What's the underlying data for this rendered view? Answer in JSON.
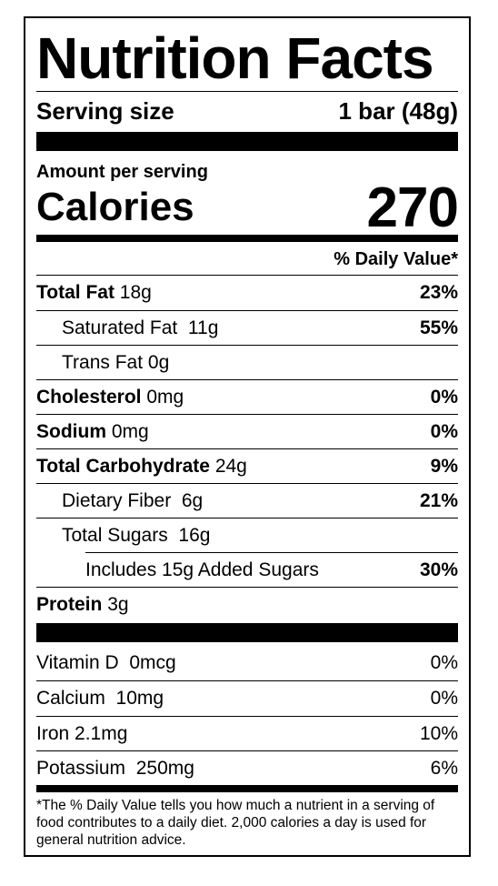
{
  "label": {
    "title": "Nutrition Facts",
    "serving_size_label": "Serving size",
    "serving_size_value": "1 bar (48g)",
    "amount_per_serving": "Amount per serving",
    "calories_label": "Calories",
    "calories_value": "270",
    "daily_value_header": "% Daily Value*"
  },
  "nutrients": [
    {
      "name": "Total Fat",
      "amount": "18g",
      "dv": "23%"
    },
    {
      "name": "Saturated Fat",
      "amount": "11g",
      "dv": "55%"
    },
    {
      "name": "Trans Fat",
      "amount": "0g",
      "dv": ""
    },
    {
      "name": "Cholesterol",
      "amount": "0mg",
      "dv": "0%"
    },
    {
      "name": "Sodium",
      "amount": "0mg",
      "dv": "0%"
    },
    {
      "name": "Total Carbohydrate",
      "amount": "24g",
      "dv": "9%"
    },
    {
      "name": "Dietary Fiber",
      "amount": "6g",
      "dv": "21%"
    },
    {
      "name": "Total Sugars",
      "amount": "16g",
      "dv": ""
    },
    {
      "name": "Includes 15g Added Sugars",
      "amount": "",
      "dv": "30%"
    },
    {
      "name": "Protein",
      "amount": "3g",
      "dv": ""
    }
  ],
  "vitamins": [
    {
      "name": "Vitamin D",
      "amount": "0mcg",
      "dv": "0%"
    },
    {
      "name": "Calcium",
      "amount": "10mg",
      "dv": "0%"
    },
    {
      "name": "Iron",
      "amount": "2.1mg",
      "dv": "10%"
    },
    {
      "name": "Potassium",
      "amount": "250mg",
      "dv": "6%"
    }
  ],
  "footnote": "*The % Daily Value tells you how much a nutrient in a serving of food contributes to a daily diet. 2,000 calories a day is used for general nutrition advice."
}
